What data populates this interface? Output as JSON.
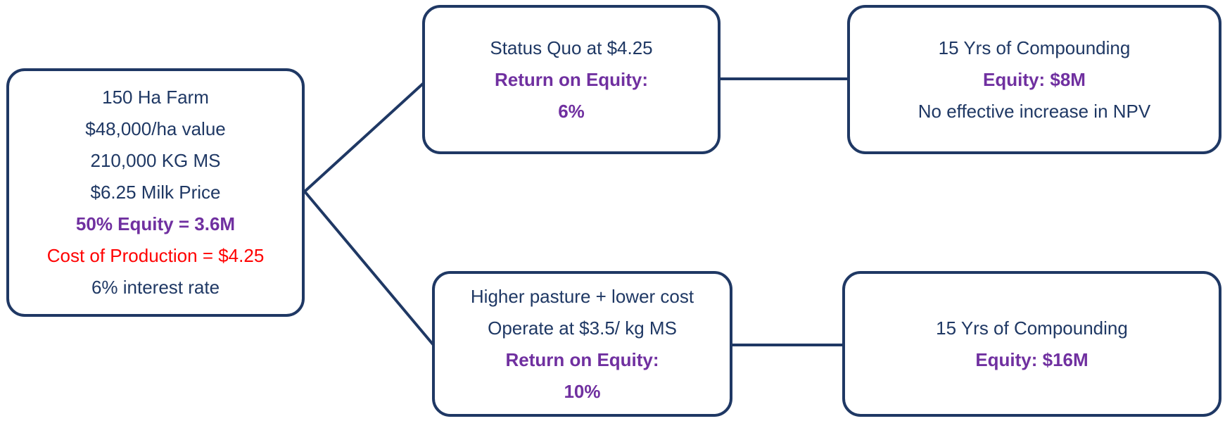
{
  "nodes": [
    {
      "lines": [
        {
          "text": "150 Ha Farm",
          "color": "#1f3864",
          "bold": false
        },
        {
          "text": "$48,000/ha value",
          "color": "#1f3864",
          "bold": false
        },
        {
          "text": "210,000 KG MS",
          "color": "#1f3864",
          "bold": false
        },
        {
          "text": "$6.25 Milk Price",
          "color": "#1f3864",
          "bold": false
        },
        {
          "text": "50% Equity = 3.6M",
          "color": "#7030a0",
          "bold": true
        },
        {
          "text": "Cost of Production = $4.25",
          "color": "#ff0000",
          "bold": false
        },
        {
          "text": "6% interest rate",
          "color": "#1f3864",
          "bold": false
        }
      ]
    },
    {
      "lines": [
        {
          "text": "Status Quo at $4.25",
          "color": "#1f3864",
          "bold": false
        },
        {
          "text": "Return on Equity:",
          "color": "#7030a0",
          "bold": true
        },
        {
          "text": "6%",
          "color": "#7030a0",
          "bold": true
        }
      ]
    },
    {
      "lines": [
        {
          "text": "15 Yrs of Compounding",
          "color": "#1f3864",
          "bold": false
        },
        {
          "text": "Equity: $8M",
          "color": "#7030a0",
          "bold": true
        },
        {
          "text": "No effective increase in NPV",
          "color": "#1f3864",
          "bold": false
        }
      ]
    },
    {
      "lines": [
        {
          "text": "Higher pasture + lower cost",
          "color": "#1f3864",
          "bold": false
        },
        {
          "text": "Operate at $3.5/ kg MS",
          "color": "#1f3864",
          "bold": false
        },
        {
          "text": "Return on Equity:",
          "color": "#7030a0",
          "bold": true
        },
        {
          "text": "10%",
          "color": "#7030a0",
          "bold": true
        }
      ]
    },
    {
      "lines": [
        {
          "text": "15 Yrs of Compounding",
          "color": "#1f3864",
          "bold": false
        },
        {
          "text": "Equity: $16M",
          "color": "#7030a0",
          "bold": true
        }
      ]
    }
  ]
}
